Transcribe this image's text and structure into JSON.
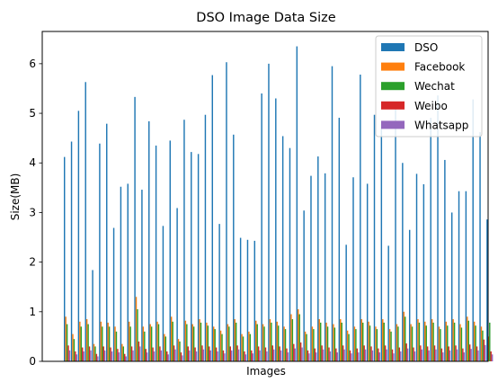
{
  "chart_data": {
    "type": "bar",
    "title": "DSO Image Data Size",
    "xlabel": "Images",
    "ylabel": "Size(MB)",
    "ylim": [
      0,
      6.65
    ],
    "yticks": [
      0,
      1,
      2,
      3,
      4,
      5,
      6
    ],
    "xticks": [],
    "grid": false,
    "legend": {
      "placement": "top-right"
    },
    "colors": {
      "DSO": "#1f77b4",
      "Facebook": "#ff7f0e",
      "Wechat": "#2ca02c",
      "Weibo": "#d62728",
      "Whatsapp": "#9467bd"
    },
    "series": [
      {
        "name": "DSO",
        "values": [
          4.12,
          4.43,
          5.05,
          5.63,
          1.84,
          4.39,
          4.79,
          2.69,
          3.52,
          3.58,
          5.33,
          3.46,
          4.84,
          4.35,
          2.73,
          4.45,
          3.09,
          4.87,
          4.22,
          4.18,
          4.97,
          5.77,
          2.77,
          6.03,
          4.57,
          2.49,
          2.45,
          2.43,
          5.4,
          6.0,
          5.3,
          4.54,
          4.3,
          6.35,
          3.04,
          3.74,
          4.13,
          3.79,
          5.95,
          4.91,
          2.35,
          3.71,
          5.78,
          3.58,
          4.97,
          4.79,
          2.33,
          5.09,
          4.0,
          2.65,
          3.78,
          3.57,
          4.91,
          5.36,
          4.06,
          3.0,
          3.43,
          3.43,
          5.28,
          4.62,
          2.86
        ]
      },
      {
        "name": "Facebook",
        "values": [
          0.9,
          0.55,
          0.8,
          0.85,
          0.35,
          0.8,
          0.78,
          0.7,
          0.35,
          0.8,
          1.3,
          0.7,
          0.75,
          0.8,
          0.55,
          0.9,
          0.45,
          0.82,
          0.75,
          0.85,
          0.78,
          0.7,
          0.62,
          0.75,
          0.85,
          0.55,
          0.6,
          0.82,
          0.75,
          0.85,
          0.8,
          0.7,
          0.95,
          1.05,
          0.6,
          0.7,
          0.85,
          0.78,
          0.75,
          0.85,
          0.62,
          0.7,
          0.85,
          0.8,
          0.7,
          0.85,
          0.65,
          0.75,
          1.0,
          0.75,
          0.85,
          0.8,
          0.85,
          0.7,
          0.8,
          0.85,
          0.75,
          0.9,
          0.8,
          0.7,
          0.5
        ]
      },
      {
        "name": "Wechat",
        "values": [
          0.75,
          0.45,
          0.7,
          0.75,
          0.3,
          0.7,
          0.7,
          0.6,
          0.3,
          0.7,
          1.05,
          0.6,
          0.7,
          0.75,
          0.5,
          0.8,
          0.4,
          0.75,
          0.7,
          0.78,
          0.72,
          0.65,
          0.55,
          0.7,
          0.78,
          0.5,
          0.55,
          0.75,
          0.7,
          0.78,
          0.72,
          0.65,
          0.85,
          0.95,
          0.55,
          0.65,
          0.78,
          0.7,
          0.68,
          0.78,
          0.55,
          0.65,
          0.78,
          0.72,
          0.65,
          0.78,
          0.6,
          0.7,
          0.9,
          0.7,
          0.78,
          0.72,
          0.78,
          0.65,
          0.72,
          0.78,
          0.68,
          0.82,
          0.72,
          0.62,
          0.78
        ]
      },
      {
        "name": "Weibo",
        "values": [
          0.32,
          0.2,
          0.28,
          0.3,
          0.15,
          0.3,
          0.28,
          0.25,
          0.15,
          0.3,
          0.4,
          0.25,
          0.28,
          0.3,
          0.2,
          0.32,
          0.18,
          0.3,
          0.28,
          0.32,
          0.3,
          0.28,
          0.22,
          0.3,
          0.32,
          0.2,
          0.22,
          0.3,
          0.28,
          0.32,
          0.3,
          0.26,
          0.35,
          0.38,
          0.22,
          0.26,
          0.32,
          0.28,
          0.26,
          0.32,
          0.22,
          0.26,
          0.32,
          0.3,
          0.26,
          0.32,
          0.24,
          0.28,
          0.36,
          0.28,
          0.32,
          0.3,
          0.32,
          0.26,
          0.3,
          0.32,
          0.26,
          0.34,
          0.3,
          0.44,
          0.2
        ]
      },
      {
        "name": "Whatsapp",
        "values": [
          0.22,
          0.14,
          0.2,
          0.22,
          0.1,
          0.22,
          0.2,
          0.18,
          0.1,
          0.22,
          0.3,
          0.18,
          0.2,
          0.22,
          0.14,
          0.24,
          0.12,
          0.22,
          0.2,
          0.24,
          0.22,
          0.2,
          0.16,
          0.22,
          0.24,
          0.14,
          0.16,
          0.22,
          0.2,
          0.24,
          0.22,
          0.18,
          0.26,
          0.28,
          0.16,
          0.18,
          0.24,
          0.2,
          0.18,
          0.24,
          0.16,
          0.18,
          0.24,
          0.22,
          0.18,
          0.24,
          0.16,
          0.2,
          0.26,
          0.2,
          0.24,
          0.22,
          0.24,
          0.18,
          0.22,
          0.24,
          0.18,
          0.25,
          0.22,
          0.33,
          0.14
        ]
      }
    ]
  }
}
